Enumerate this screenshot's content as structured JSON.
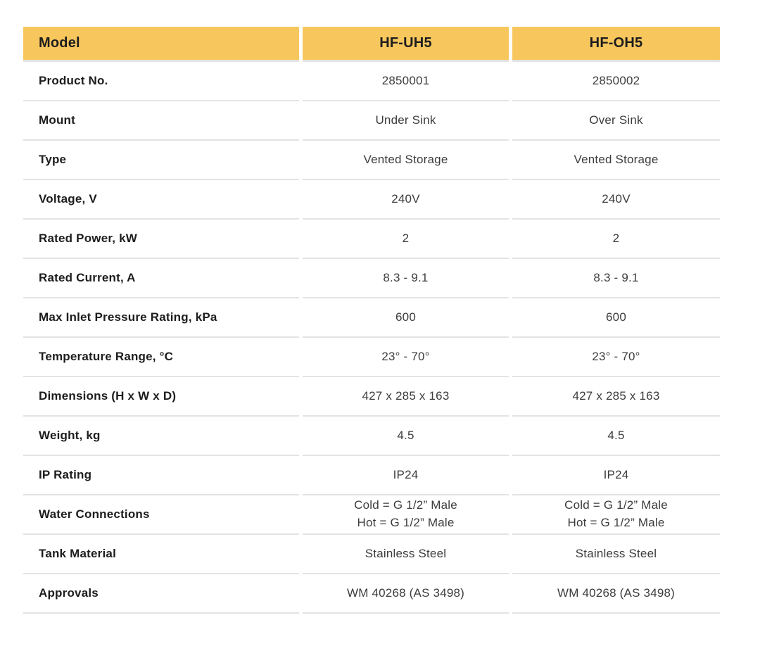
{
  "colors": {
    "header_bg": "#F7C75E",
    "header_text": "#1D1D1D",
    "label_text": "#1D1D1D",
    "value_text": "#3C3C3C",
    "divider": "#E4E3E4"
  },
  "table": {
    "header": {
      "model": "Model",
      "uh5": "HF-UH5",
      "oh5": "HF-OH5"
    },
    "rows": [
      {
        "label": "Product No.",
        "uh5": "2850001",
        "oh5": "2850002"
      },
      {
        "label": "Mount",
        "uh5": "Under Sink",
        "oh5": "Over Sink"
      },
      {
        "label": "Type",
        "uh5": "Vented Storage",
        "oh5": "Vented Storage"
      },
      {
        "label": "Voltage, V",
        "uh5": "240V",
        "oh5": "240V"
      },
      {
        "label": "Rated Power, kW",
        "uh5": "2",
        "oh5": "2"
      },
      {
        "label": "Rated Current, A",
        "uh5": "8.3 - 9.1",
        "oh5": "8.3 - 9.1"
      },
      {
        "label": "Max Inlet Pressure Rating, kPa",
        "uh5": "600",
        "oh5": "600"
      },
      {
        "label": "Temperature Range, °C",
        "uh5": "23° - 70°",
        "oh5": "23° - 70°"
      },
      {
        "label": "Dimensions (H x W x D)",
        "uh5": "427 x 285 x 163",
        "oh5": "427 x 285 x 163"
      },
      {
        "label": "Weight, kg",
        "uh5": "4.5",
        "oh5": "4.5"
      },
      {
        "label": "IP Rating",
        "uh5": "IP24",
        "oh5": "IP24"
      },
      {
        "label": "Water Connections",
        "uh5": "Cold = G 1/2” Male\nHot = G 1/2” Male",
        "oh5": "Cold = G 1/2” Male\nHot = G 1/2” Male"
      },
      {
        "label": "Tank Material",
        "uh5": "Stainless Steel",
        "oh5": "Stainless Steel"
      },
      {
        "label": "Approvals",
        "uh5": "WM 40268 (AS 3498)",
        "oh5": "WM 40268 (AS 3498)"
      }
    ]
  }
}
